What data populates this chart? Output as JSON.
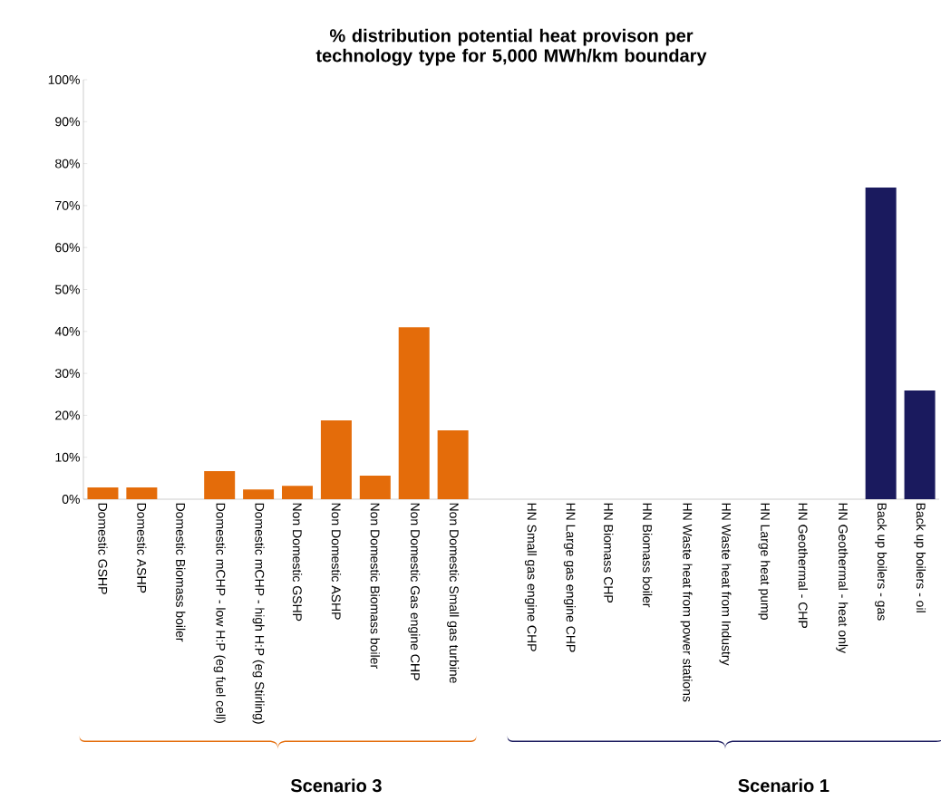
{
  "chart_data": {
    "type": "bar",
    "title": "% distribution potential heat provison per technology type for 5,000 MWh/km boundary",
    "categories": [
      "Domestic GSHP",
      "Domestic ASHP",
      "Domestic Biomass boiler",
      "Domestic mCHP - low H:P (eg fuel cell)",
      "Domestic mCHP - high H:P (eg Stirling)",
      "Non Domestic GSHP",
      "Non Domestic ASHP",
      "Non Domestic Biomass boiler",
      "Non Domestic Gas engine CHP",
      "Non Domestic Small gas turbine",
      null,
      "HN Small gas engine CHP",
      "HN Large gas engine CHP",
      "HN Biomass CHP",
      "HN Biomass boiler",
      "HN Waste heat from power stations",
      "HN Waste heat from Industry",
      "HN Large heat pump",
      "HN Geothermal - CHP",
      "HN Geothermal - heat only",
      "Back up boilers - gas",
      "Back up boilers - oil"
    ],
    "values": [
      2.8,
      2.8,
      0,
      6.7,
      2.3,
      3.2,
      18.8,
      5.6,
      41,
      16.4,
      null,
      0,
      0,
      0,
      0,
      0,
      0,
      0,
      0,
      0,
      74.3,
      25.9
    ],
    "colors": [
      "#e46c0a",
      "#e46c0a",
      "#e46c0a",
      "#e46c0a",
      "#e46c0a",
      "#e46c0a",
      "#e46c0a",
      "#e46c0a",
      "#e46c0a",
      "#e46c0a",
      null,
      "#1a1a5e",
      "#1a1a5e",
      "#1a1a5e",
      "#1a1a5e",
      "#1a1a5e",
      "#1a1a5e",
      "#1a1a5e",
      "#1a1a5e",
      "#1a1a5e",
      "#1a1a5e",
      "#1a1a5e"
    ],
    "ylim": [
      0,
      100
    ],
    "yticks": [
      {
        "value": 0,
        "label": "0%"
      },
      {
        "value": 10,
        "label": "10%"
      },
      {
        "value": 20,
        "label": "20%"
      },
      {
        "value": 30,
        "label": "30%"
      },
      {
        "value": 40,
        "label": "40%"
      },
      {
        "value": 50,
        "label": "50%"
      },
      {
        "value": 60,
        "label": "60%"
      },
      {
        "value": 70,
        "label": "70%"
      },
      {
        "value": 80,
        "label": "80%"
      },
      {
        "value": 90,
        "label": "90%"
      },
      {
        "value": 100,
        "label": "100%"
      }
    ],
    "annotations": [
      "Scenario 3",
      "Scenario 1"
    ]
  }
}
